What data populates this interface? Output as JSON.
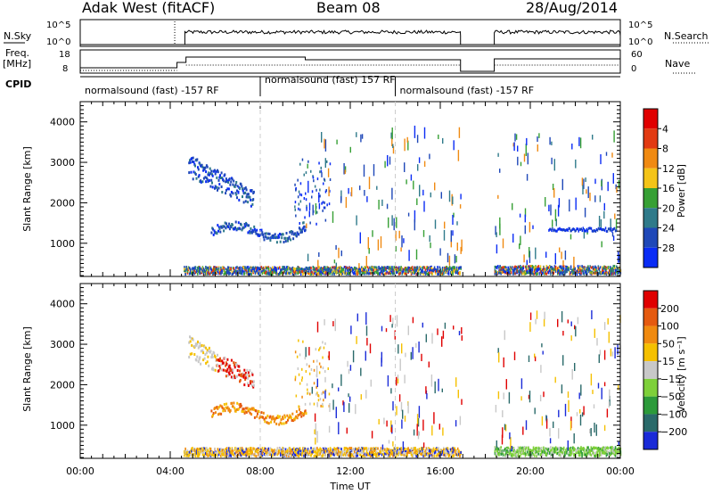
{
  "header": {
    "station": "Adak West (fitACF)",
    "beam": "Beam 08",
    "date": "28/Aug/2014"
  },
  "strip_labels": {
    "nsky": "N.Sky",
    "nsearch": "N.Search",
    "freq": "Freq.",
    "freq_unit": "[MHz]",
    "nave": "Nave",
    "cpid": "CPID",
    "scale_hi": "10^5",
    "scale_lo": "10^0",
    "freq_hi": "18",
    "freq_lo": "8",
    "nave_hi": "60",
    "nave_lo": "0"
  },
  "cpid_segments": [
    {
      "label": "normalsound (fast) -157 RF",
      "start_h": 0
    },
    {
      "label": "normalsound (fast) 157 RF",
      "start_h": 8
    },
    {
      "label": "normalsound (fast) -157 RF",
      "start_h": 14
    }
  ],
  "chart_data": [
    {
      "type": "heatmap",
      "panel": "power",
      "ylabel": "Slant Range [km]",
      "xlabel": "",
      "ylim": [
        180,
        4500
      ],
      "yticks": [
        "1000",
        "2000",
        "3000",
        "4000"
      ],
      "xticks": [
        "00:00",
        "04:00",
        "08:00",
        "12:00",
        "16:00",
        "20:00",
        "00:00"
      ],
      "colorbar": {
        "label": "Power [dB]",
        "ticks": [
          "4",
          "8",
          "12",
          "16",
          "20",
          "24",
          "28"
        ],
        "colors": [
          "#0a2cf5",
          "#1f48b8",
          "#2f7a8a",
          "#37a035",
          "#f4c418",
          "#f08a12",
          "#e23a12",
          "#e00000"
        ]
      },
      "features": [
        {
          "name": "ground-band",
          "x": [
            4.6,
            16.9
          ],
          "range": [
            200,
            380
          ]
        },
        {
          "name": "ground-band",
          "x": [
            18.4,
            24.0
          ],
          "range": [
            200,
            400
          ]
        },
        {
          "name": "arc",
          "x": [
            4.8,
            7.6
          ],
          "range": [
            2200,
            3100
          ]
        },
        {
          "name": "arc",
          "x": [
            6.0,
            10.0
          ],
          "range": [
            1000,
            1500
          ]
        },
        {
          "name": "scatter",
          "x": [
            20.5,
            24.0
          ],
          "range": [
            1200,
            3500
          ]
        }
      ]
    },
    {
      "type": "heatmap",
      "panel": "velocity",
      "ylabel": "Slant Range [km]",
      "xlabel": "Time UT",
      "ylim": [
        180,
        4500
      ],
      "yticks": [
        "1000",
        "2000",
        "3000",
        "4000"
      ],
      "xticks": [
        "00:00",
        "04:00",
        "08:00",
        "12:00",
        "16:00",
        "20:00",
        "00:00"
      ],
      "colorbar": {
        "label": "Velocity [m s⁻¹]",
        "ticks": [
          "200",
          "100",
          "50",
          "15",
          "−15",
          "−50",
          "−100",
          "−200"
        ],
        "colors": [
          "#1a2bd8",
          "#2a6a6a",
          "#2c9a3a",
          "#7ed03a",
          "#c8c8c8",
          "#f5c000",
          "#f08a10",
          "#e55a10",
          "#e00000"
        ]
      },
      "features": [
        {
          "name": "ground-band",
          "x": [
            4.6,
            16.9
          ],
          "range": [
            200,
            400
          ]
        },
        {
          "name": "ground-band",
          "x": [
            18.4,
            24.0
          ],
          "range": [
            200,
            420
          ]
        },
        {
          "name": "arc",
          "x": [
            5.0,
            7.6
          ],
          "range": [
            2200,
            2900
          ]
        },
        {
          "name": "arc",
          "x": [
            5.5,
            10.0
          ],
          "range": [
            900,
            1600
          ]
        }
      ]
    }
  ],
  "colors": {
    "background": "#ffffff",
    "axis": "#000000",
    "dashed": "#cccccc"
  }
}
